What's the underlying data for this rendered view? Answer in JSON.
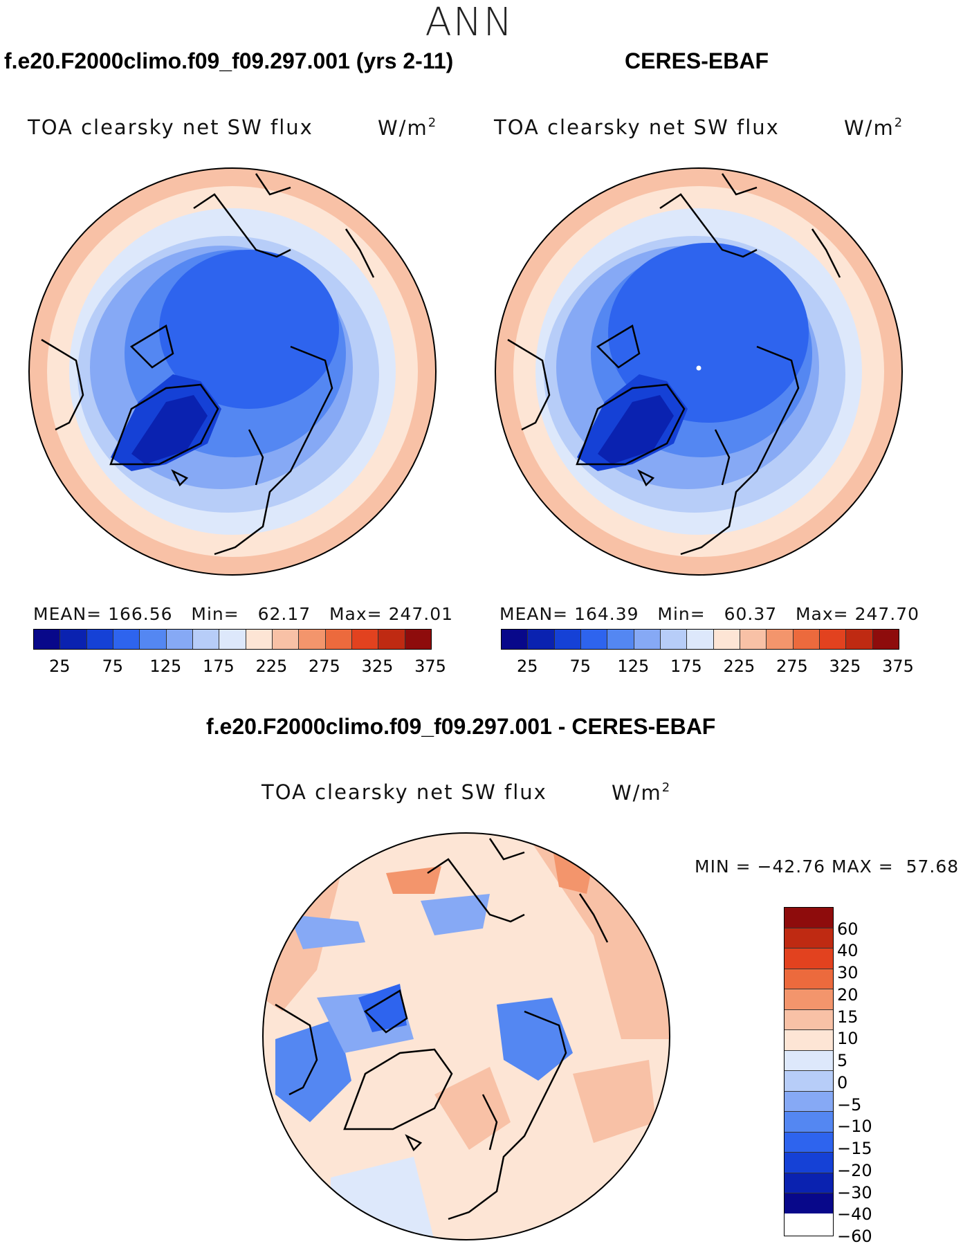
{
  "season": "ANN",
  "panel_left": {
    "case_title": "f.e20.F2000climo.f09_f09.297.001 (yrs 2-11)",
    "var_title": "TOA clearsky net SW flux",
    "units": "W/m",
    "units_exp": "2",
    "stats": {
      "mean_label": "MEAN=",
      "mean": "166.56",
      "min_label": "Min=",
      "min": "62.17",
      "max_label": "Max=",
      "max": "247.01"
    }
  },
  "panel_right": {
    "case_title": "CERES-EBAF",
    "var_title": "TOA clearsky net SW flux",
    "units": "W/m",
    "units_exp": "2",
    "stats": {
      "mean_label": "MEAN=",
      "mean": "164.39",
      "min_label": "Min=",
      "min": "60.37",
      "max_label": "Max=",
      "max": "247.70"
    }
  },
  "panel_diff": {
    "case_title": "f.e20.F2000climo.f09_f09.297.001 - CERES-EBAF",
    "var_title": "TOA clearsky net SW flux",
    "units": "W/m",
    "units_exp": "2",
    "minmax": {
      "min_label": "MIN =",
      "min": "−42.76",
      "max_label": "MAX =",
      "max": "57.68"
    }
  },
  "colorbar_abs": {
    "colors": [
      "#08088a",
      "#0a22b0",
      "#1541d6",
      "#2e64ee",
      "#5487f2",
      "#86a9f5",
      "#b7cdf8",
      "#dde8fb",
      "#fde5d5",
      "#f8c1a6",
      "#f3956c",
      "#ec6a3d",
      "#e2421f",
      "#bf2a12",
      "#8e0c0c"
    ],
    "ticks": [
      "25",
      "75",
      "125",
      "175",
      "225",
      "275",
      "325",
      "375"
    ]
  },
  "colorbar_diff": {
    "colors": [
      "#8e0c0c",
      "#bf2a12",
      "#e2421f",
      "#ec6a3d",
      "#f3956c",
      "#f8c1a6",
      "#fde5d5",
      "#dde8fb",
      "#b7cdf8",
      "#86a9f5",
      "#5487f2",
      "#2e64ee",
      "#1541d6",
      "#0a22b0",
      "#08088a"
    ],
    "ticks": [
      "60",
      "40",
      "30",
      "20",
      "15",
      "10",
      "5",
      "0",
      "−5",
      "−10",
      "−15",
      "−20",
      "−30",
      "−40",
      "−60"
    ]
  }
}
